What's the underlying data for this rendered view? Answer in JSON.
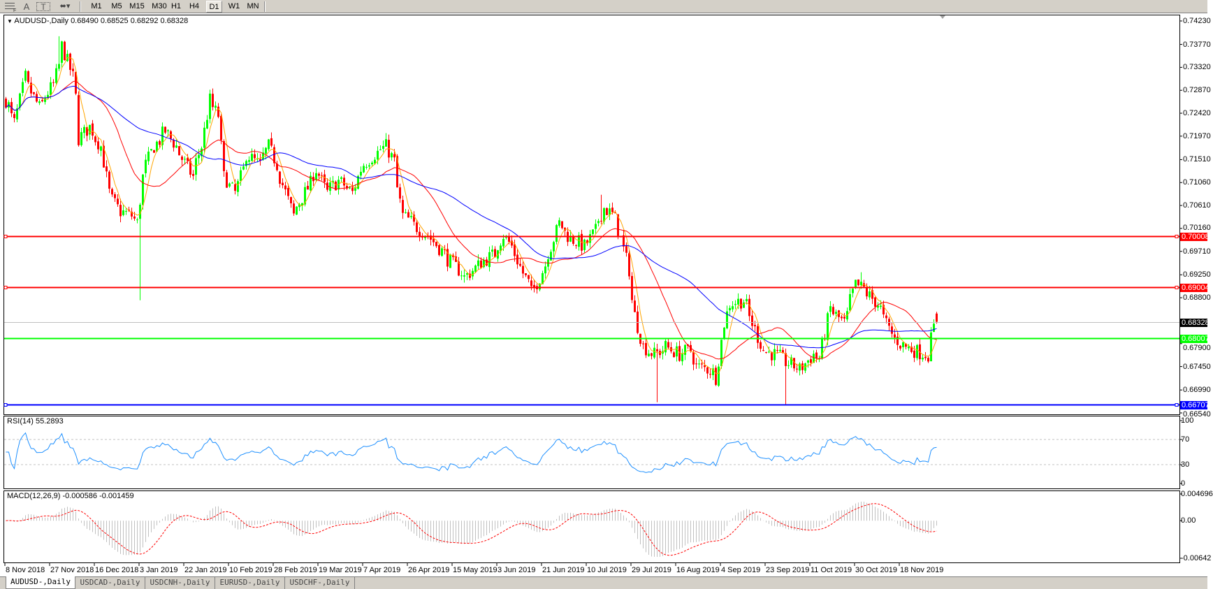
{
  "toolbar": {
    "icons": [
      "fibonacci-grid-icon",
      "text-icon",
      "text-label-icon",
      "arrows-dropdown-icon"
    ],
    "text_icon_glyph": "A",
    "label_icon_glyph": "T",
    "timeframes": [
      "M1",
      "M5",
      "M15",
      "M30",
      "H1",
      "H4",
      "D1",
      "W1",
      "MN"
    ],
    "active_timeframe": "D1"
  },
  "chart": {
    "title": "AUDUSD-,Daily",
    "ohlc": "0.68490 0.68525 0.68292 0.68328",
    "last_bar": {
      "open": 0.6849,
      "high": 0.68525,
      "low": 0.68292,
      "close": 0.68328
    },
    "first_bar_date": "2018-11-08",
    "price_axis": [
      "0.74230",
      "0.73770",
      "0.73320",
      "0.72870",
      "0.72420",
      "0.71970",
      "0.71510",
      "0.71060",
      "0.70610",
      "0.70160",
      "0.69710",
      "0.69250",
      "0.68800",
      "0.67900",
      "0.67450",
      "0.66990",
      "0.66540"
    ],
    "price_range": [
      0.6654,
      0.7423
    ],
    "levels": [
      {
        "price": "0.70008",
        "color": "#ff0000",
        "handles": true
      },
      {
        "price": "0.69004",
        "color": "#ff0000",
        "handles": true
      },
      {
        "price": "0.68007",
        "color": "#00ff00",
        "handles": false
      },
      {
        "price": "0.66707",
        "color": "#0000ff",
        "handles": true
      }
    ],
    "current_price": {
      "price": "0.68328",
      "color": "#000000"
    },
    "colors": {
      "bull": "#00ff00",
      "bear": "#ff0000",
      "ma_fast": "#ffa500",
      "ma_mid": "#ff0000",
      "ma_slow": "#0000ff"
    },
    "price_path": [
      [
        "2018-11-08",
        0.7268
      ],
      [
        "2018-11-12",
        0.7223
      ],
      [
        "2018-11-16",
        0.7313
      ],
      [
        "2018-11-22",
        0.7253
      ],
      [
        "2018-11-28",
        0.7298
      ],
      [
        "2018-12-02",
        0.7374
      ],
      [
        "2018-12-06",
        0.7313
      ],
      [
        "2018-12-09",
        0.7192
      ],
      [
        "2018-12-13",
        0.7215
      ],
      [
        "2018-12-18",
        0.7177
      ],
      [
        "2018-12-21",
        0.7086
      ],
      [
        "2018-12-26",
        0.7049
      ],
      [
        "2018-12-31",
        0.7041
      ],
      [
        "2019-01-02",
        0.7026
      ],
      [
        "2019-01-04",
        0.7117
      ],
      [
        "2019-01-09",
        0.7177
      ],
      [
        "2019-01-14",
        0.7207
      ],
      [
        "2019-01-20",
        0.7162
      ],
      [
        "2019-01-25",
        0.7117
      ],
      [
        "2019-01-29",
        0.7177
      ],
      [
        "2019-02-01",
        0.7268
      ],
      [
        "2019-02-05",
        0.7238
      ],
      [
        "2019-02-07",
        0.7117
      ],
      [
        "2019-02-12",
        0.7086
      ],
      [
        "2019-02-17",
        0.7162
      ],
      [
        "2019-02-22",
        0.7139
      ],
      [
        "2019-02-26",
        0.7177
      ],
      [
        "2019-03-03",
        0.7117
      ],
      [
        "2019-03-08",
        0.7041
      ],
      [
        "2019-03-13",
        0.7086
      ],
      [
        "2019-03-18",
        0.7132
      ],
      [
        "2019-03-22",
        0.7086
      ],
      [
        "2019-03-27",
        0.7109
      ],
      [
        "2019-04-02",
        0.7086
      ],
      [
        "2019-04-05",
        0.7132
      ],
      [
        "2019-04-11",
        0.7162
      ],
      [
        "2019-04-16",
        0.7177
      ],
      [
        "2019-04-19",
        0.7147
      ],
      [
        "2019-04-23",
        0.7041
      ],
      [
        "2019-04-29",
        0.7018
      ],
      [
        "2019-05-05",
        0.6996
      ],
      [
        "2019-05-10",
        0.6966
      ],
      [
        "2019-05-16",
        0.6935
      ],
      [
        "2019-05-19",
        0.692
      ],
      [
        "2019-05-24",
        0.6943
      ],
      [
        "2019-05-31",
        0.6966
      ],
      [
        "2019-06-04",
        0.7003
      ],
      [
        "2019-06-09",
        0.6966
      ],
      [
        "2019-06-12",
        0.6928
      ],
      [
        "2019-06-16",
        0.689
      ],
      [
        "2019-06-19",
        0.692
      ],
      [
        "2019-06-24",
        0.6981
      ],
      [
        "2019-06-27",
        0.7026
      ],
      [
        "2019-07-02",
        0.6996
      ],
      [
        "2019-07-08",
        0.6981
      ],
      [
        "2019-07-12",
        0.7011
      ],
      [
        "2019-07-16",
        0.7056
      ],
      [
        "2019-07-21",
        0.7034
      ],
      [
        "2019-07-26",
        0.6935
      ],
      [
        "2019-07-29",
        0.6845
      ],
      [
        "2019-08-01",
        0.6784
      ],
      [
        "2019-08-06",
        0.6769
      ],
      [
        "2019-08-11",
        0.6784
      ],
      [
        "2019-08-16",
        0.6769
      ],
      [
        "2019-08-21",
        0.6777
      ],
      [
        "2019-08-23",
        0.6746
      ],
      [
        "2019-08-29",
        0.6739
      ],
      [
        "2019-09-01",
        0.6724
      ],
      [
        "2019-09-04",
        0.683
      ],
      [
        "2019-09-06",
        0.6868
      ],
      [
        "2019-09-12",
        0.6875
      ],
      [
        "2019-09-16",
        0.683
      ],
      [
        "2019-09-20",
        0.6777
      ],
      [
        "2019-09-25",
        0.6769
      ],
      [
        "2019-09-30",
        0.6754
      ],
      [
        "2019-10-03",
        0.6746
      ],
      [
        "2019-10-06",
        0.6739
      ],
      [
        "2019-10-11",
        0.6769
      ],
      [
        "2019-10-14",
        0.6761
      ],
      [
        "2019-10-18",
        0.686
      ],
      [
        "2019-10-24",
        0.683
      ],
      [
        "2019-10-29",
        0.6905
      ],
      [
        "2019-11-01",
        0.6898
      ],
      [
        "2019-11-07",
        0.6868
      ],
      [
        "2019-11-14",
        0.6799
      ],
      [
        "2019-11-19",
        0.6784
      ],
      [
        "2019-11-22",
        0.6777
      ],
      [
        "2019-11-28",
        0.6769
      ],
      [
        "2019-11-29",
        0.6799
      ],
      [
        "2019-12-02",
        0.68328
      ]
    ],
    "wick_lows": [
      [
        "2019-01-03",
        0.6875
      ],
      [
        "2019-08-07",
        0.6675
      ],
      [
        "2019-09-02",
        0.6705
      ],
      [
        "2019-09-30",
        0.6671
      ]
    ],
    "wick_highs": [
      [
        "2018-11-30",
        0.7393
      ],
      [
        "2019-07-15",
        0.7082
      ],
      [
        "2019-10-31",
        0.693
      ]
    ]
  },
  "rsi": {
    "title": "RSI(14) 55.2893",
    "axis": [
      "100",
      "70",
      "30",
      "0"
    ],
    "levels": [
      70,
      30
    ],
    "color": "#1e90ff"
  },
  "macd": {
    "title": "MACD(12,26,9) -0.000586 -0.001459",
    "axis": [
      "0.004696",
      "0.00",
      "-0.00642"
    ],
    "range": [
      -0.00642,
      0.004696
    ],
    "hist_color": "#c0c0c0",
    "signal_color": "#ff0000"
  },
  "time_axis": [
    "8 Nov 2018",
    "27 Nov 2018",
    "16 Dec 2018",
    "3 Jan 2019",
    "22 Jan 2019",
    "10 Feb 2019",
    "28 Feb 2019",
    "19 Mar 2019",
    "7 Apr 2019",
    "26 Apr 2019",
    "15 May 2019",
    "3 Jun 2019",
    "21 Jun 2019",
    "10 Jul 2019",
    "29 Jul 2019",
    "16 Aug 2019",
    "4 Sep 2019",
    "23 Sep 2019",
    "11 Oct 2019",
    "30 Oct 2019",
    "18 Nov 2019"
  ],
  "tabs": [
    "AUDUSD-,Daily",
    "USDCAD-,Daily",
    "USDCNH-,Daily",
    "EURUSD-,Daily",
    "USDCHF-,Daily"
  ],
  "active_tab": 0
}
